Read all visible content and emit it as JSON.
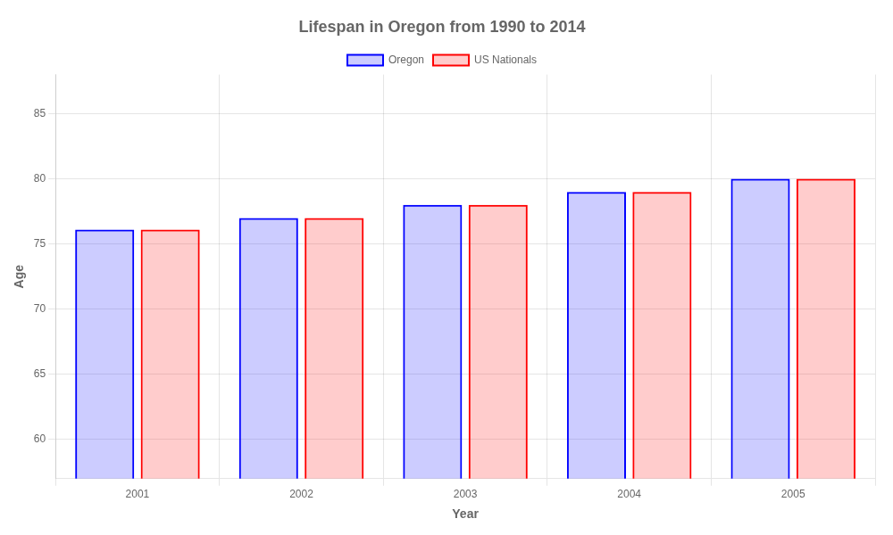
{
  "chart_data": {
    "type": "bar",
    "title": "Lifespan in Oregon from 1990 to 2014",
    "x_label": "Year",
    "y_label": "Age",
    "categories": [
      "2001",
      "2002",
      "2003",
      "2004",
      "2005"
    ],
    "series": [
      {
        "name": "Oregon",
        "color": "#0000ff",
        "values": [
          76.1,
          77.0,
          78.0,
          79.0,
          80.0
        ]
      },
      {
        "name": "US Nationals",
        "color": "#ff0000",
        "values": [
          76.1,
          77.0,
          78.0,
          79.0,
          80.0
        ]
      }
    ],
    "ylim": [
      57,
      88
    ],
    "yticks": [
      60,
      65,
      70,
      75,
      80,
      85
    ],
    "grid": true,
    "legend": "top"
  }
}
